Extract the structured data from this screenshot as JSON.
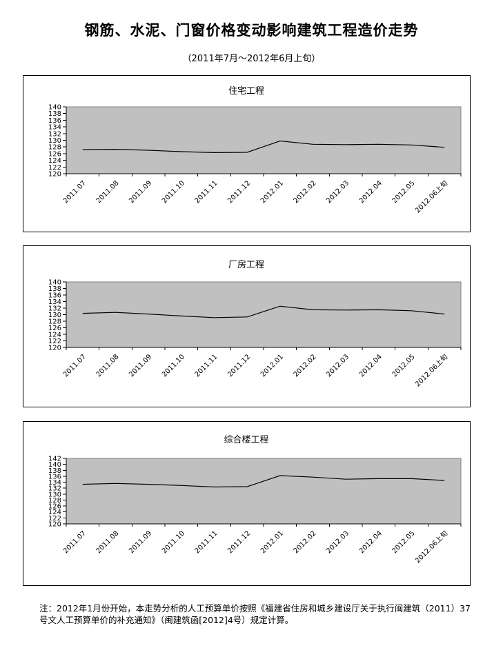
{
  "page": {
    "title": "钢筋、水泥、门窗价格变动影响建筑工程造价走势",
    "subtitle": "（2011年7月～2012年6月上旬）",
    "note": "注：2012年1月份开始，本走势分析的人工预算单价按照《福建省住房和城乡建设厅关于执行闽建筑（2011）37号文人工预算单价的补充通知》（闽建筑函[2012]4号）规定计算。"
  },
  "colors": {
    "plot_bg": "#c0c0c0",
    "plot_border": "#808080",
    "axis": "#000000",
    "line": "#000000",
    "panel_border": "#000000"
  },
  "chart_data": [
    {
      "type": "line",
      "title": "住宅工程",
      "categories": [
        "2011.07",
        "2011.08",
        "2011.09",
        "2011.10",
        "2011.11",
        "2011.12",
        "2012.01",
        "2012.02",
        "2012.03",
        "2012.04",
        "2012.05",
        "2012.06上旬"
      ],
      "values": [
        127.2,
        127.3,
        127.0,
        126.6,
        126.3,
        126.4,
        129.8,
        128.8,
        128.7,
        128.8,
        128.6,
        127.9
      ],
      "xlabel": "",
      "ylabel": "",
      "ylim": [
        120,
        140
      ],
      "ytick_step": 2,
      "grid": false,
      "legend": "none",
      "xlabel_rotation_deg": 45
    },
    {
      "type": "line",
      "title": "厂房工程",
      "categories": [
        "2011.07",
        "2011.08",
        "2011.09",
        "2011.10",
        "2011.11",
        "2011.12",
        "2012.01",
        "2012.02",
        "2012.03",
        "2012.04",
        "2012.05",
        "2012.06上旬"
      ],
      "values": [
        130.4,
        130.7,
        130.2,
        129.6,
        129.1,
        129.3,
        132.6,
        131.5,
        131.4,
        131.5,
        131.2,
        130.2
      ],
      "xlabel": "",
      "ylabel": "",
      "ylim": [
        120,
        140
      ],
      "ytick_step": 2,
      "grid": false,
      "legend": "none",
      "xlabel_rotation_deg": 45
    },
    {
      "type": "line",
      "title": "综合楼工程",
      "categories": [
        "2011.07",
        "2011.08",
        "2011.09",
        "2011.10",
        "2011.11",
        "2011.12",
        "2012.01",
        "2012.02",
        "2012.03",
        "2012.04",
        "2012.05",
        "2012.06上旬"
      ],
      "values": [
        133.3,
        133.6,
        133.3,
        132.9,
        132.4,
        132.5,
        136.2,
        135.7,
        135.0,
        135.2,
        135.2,
        134.6
      ],
      "xlabel": "",
      "ylabel": "",
      "ylim": [
        120,
        142
      ],
      "ytick_step": 2,
      "grid": false,
      "legend": "none",
      "xlabel_rotation_deg": 45
    }
  ]
}
